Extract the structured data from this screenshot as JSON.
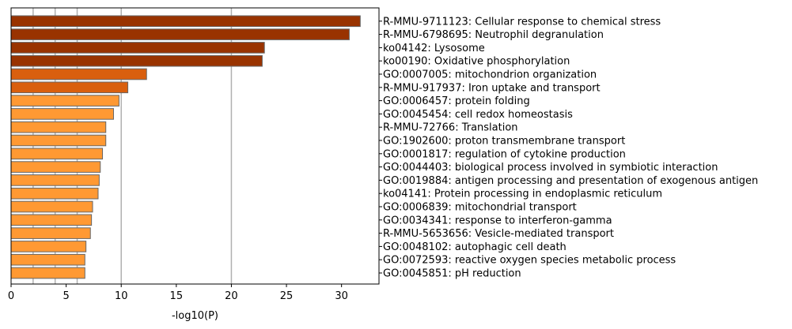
{
  "chart_data": {
    "type": "bar",
    "orientation": "horizontal",
    "xlabel": "-log10(P)",
    "xlim": [
      0,
      33.4
    ],
    "xticks": [
      0,
      5,
      10,
      15,
      20,
      25,
      30
    ],
    "gridlines_x": [
      2,
      4,
      6,
      10,
      20
    ],
    "categories": [
      "R-MMU-9711123: Cellular response to chemical stress",
      "R-MMU-6798695: Neutrophil degranulation",
      "ko04142: Lysosome",
      "ko00190: Oxidative phosphorylation",
      "GO:0007005: mitochondrion organization",
      "R-MMU-917937: Iron uptake and transport",
      "GO:0006457: protein folding",
      "GO:0045454: cell redox homeostasis",
      "R-MMU-72766: Translation",
      "GO:1902600: proton transmembrane transport",
      "GO:0001817: regulation of cytokine production",
      "GO:0044403: biological process involved in symbiotic interaction",
      "GO:0019884: antigen processing and presentation of exogenous antigen",
      "ko04141: Protein processing in endoplasmic reticulum",
      "GO:0006839: mitochondrial transport",
      "GO:0034341: response to interferon-gamma",
      "R-MMU-5653656: Vesicle-mediated transport",
      "GO:0048102: autophagic cell death",
      "GO:0072593: reactive oxygen species metabolic process",
      "GO:0045851: pH reduction"
    ],
    "values": [
      31.7,
      30.7,
      23.0,
      22.8,
      12.3,
      10.6,
      9.8,
      9.3,
      8.6,
      8.6,
      8.3,
      8.1,
      8.0,
      7.9,
      7.4,
      7.3,
      7.2,
      6.8,
      6.7,
      6.7
    ],
    "colors": [
      "#993300",
      "#993300",
      "#993300",
      "#993300",
      "#d95f0e",
      "#d95f0e",
      "#ff9933",
      "#ff9933",
      "#ff9933",
      "#ff9933",
      "#ff9933",
      "#ff9933",
      "#ff9933",
      "#ff9933",
      "#ff9933",
      "#ff9933",
      "#ff9933",
      "#ff9933",
      "#ff9933",
      "#ff9933"
    ],
    "bar_edge_color": "#666666",
    "grid_color": "#b0b0b0"
  }
}
